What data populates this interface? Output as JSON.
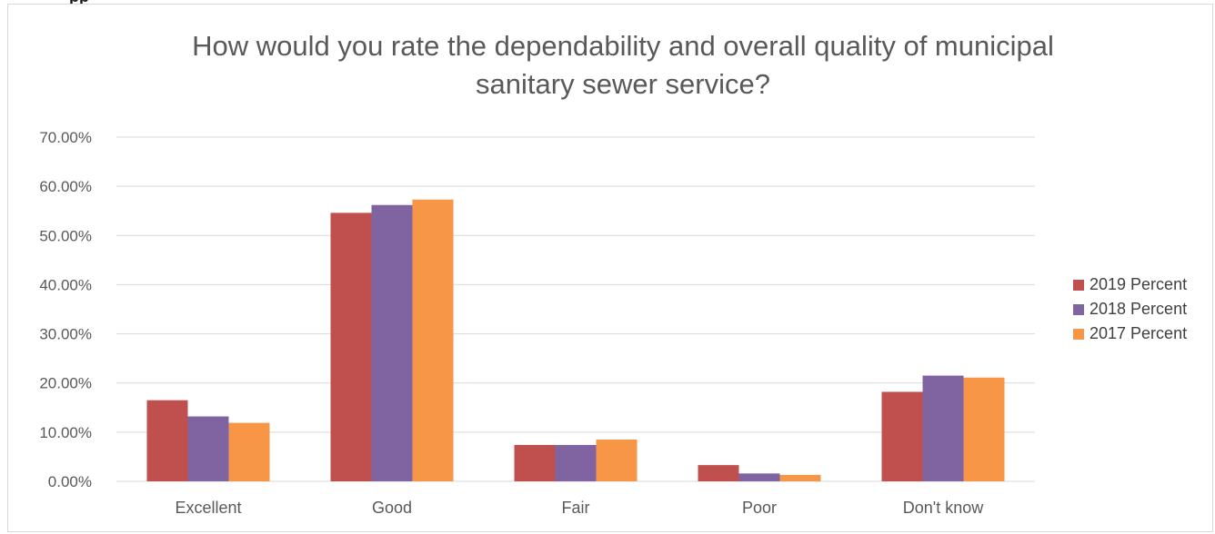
{
  "header_fragment": "pp",
  "chart_data": {
    "type": "bar",
    "title": "How would you rate the dependability and overall quality of municipal sanitary sewer service?",
    "xlabel": "",
    "ylabel": "",
    "categories": [
      "Excellent",
      "Good",
      "Fair",
      "Poor",
      "Don't know"
    ],
    "series": [
      {
        "name": "2019 Percent",
        "color": "#c0504d",
        "values": [
          16.5,
          54.6,
          7.4,
          3.3,
          18.2
        ]
      },
      {
        "name": "2018 Percent",
        "color": "#8064a2",
        "values": [
          13.2,
          56.2,
          7.4,
          1.6,
          21.5
        ]
      },
      {
        "name": "2017 Percent",
        "color": "#f79646",
        "values": [
          11.9,
          57.3,
          8.5,
          1.3,
          21.1
        ]
      }
    ],
    "ylim": [
      0,
      70
    ],
    "yticks": [
      "0.00%",
      "10.00%",
      "20.00%",
      "30.00%",
      "40.00%",
      "50.00%",
      "60.00%",
      "70.00%"
    ],
    "grid": true,
    "legend_position": "right"
  }
}
